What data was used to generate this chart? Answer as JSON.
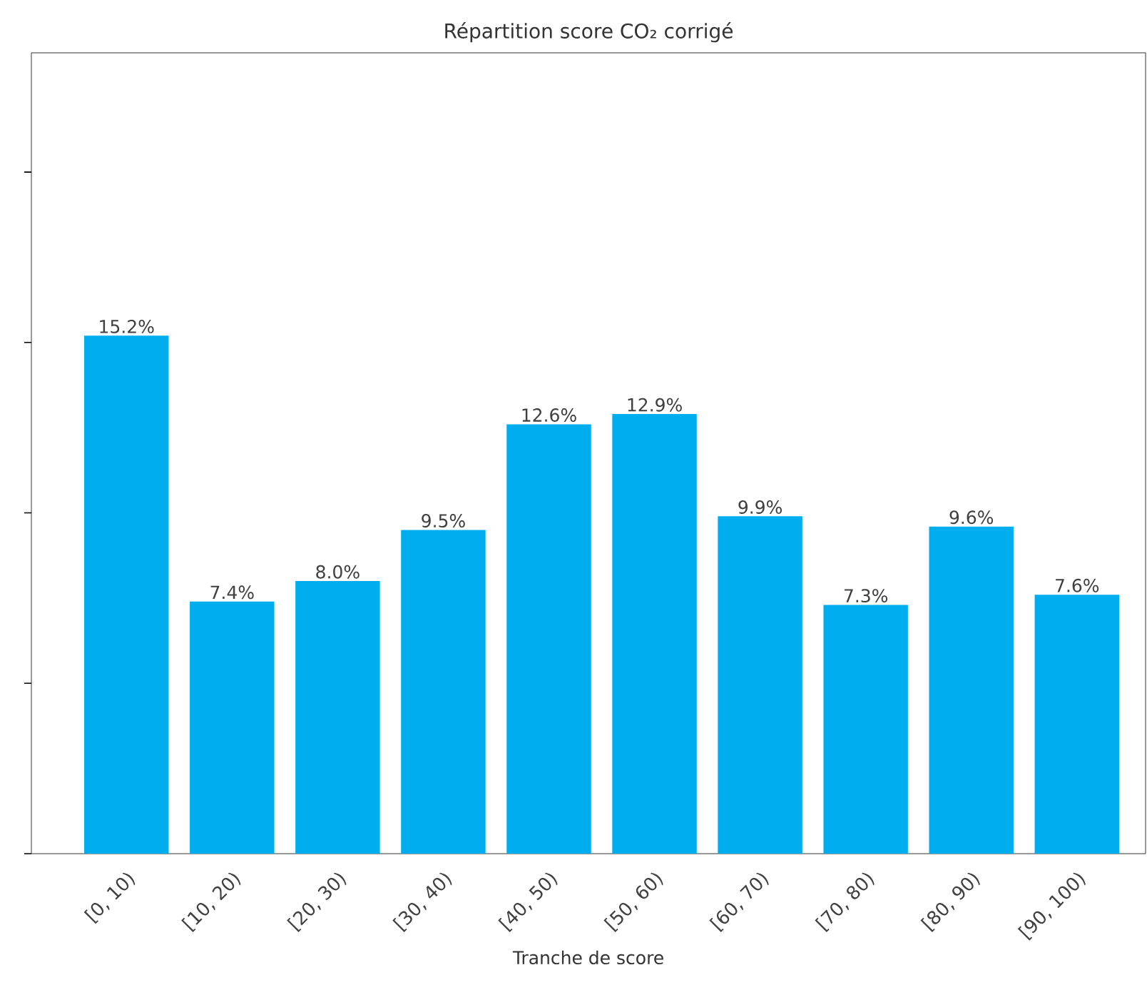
{
  "chart_data": {
    "type": "bar",
    "title": "Répartition score CO₂ corrigé",
    "xlabel": "Tranche de score",
    "categories": [
      "[0, 10)",
      "[10, 20)",
      "[20, 30)",
      "[30, 40)",
      "[40, 50)",
      "[50, 60)",
      "[60, 70)",
      "[70, 80)",
      "[80, 90)",
      "[90, 100)"
    ],
    "values": [
      15.2,
      7.4,
      8.0,
      9.5,
      12.6,
      12.9,
      9.9,
      7.3,
      9.6,
      7.6
    ],
    "value_labels": [
      "15.2%",
      "7.4%",
      "8.0%",
      "9.5%",
      "12.6%",
      "12.9%",
      "9.9%",
      "7.3%",
      "9.6%",
      "7.6%"
    ],
    "color": "#00aeef",
    "ylim": [
      0,
      23.5
    ],
    "yticks": [
      {
        "value": 0,
        "label": null
      },
      {
        "value": 5,
        "label": null
      },
      {
        "value": 10,
        "label": null
      },
      {
        "value": 15,
        "label": null
      },
      {
        "value": 20,
        "label": null
      }
    ],
    "tick_labels": "x"
  }
}
